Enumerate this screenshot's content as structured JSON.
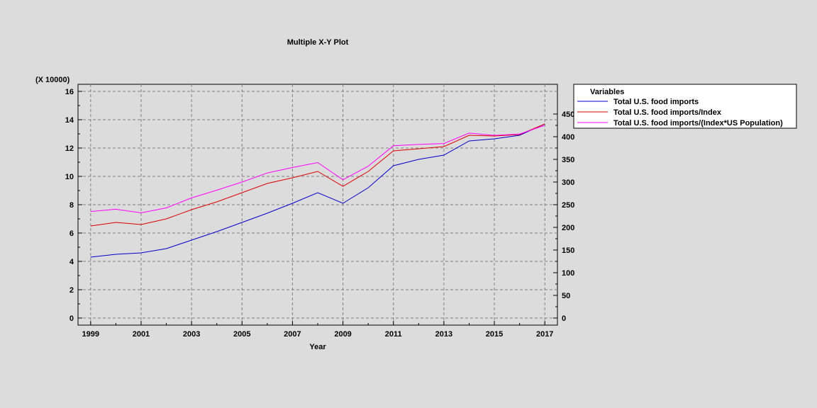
{
  "chart_data": {
    "type": "line",
    "title": "Multiple X-Y Plot",
    "xlabel": "Year",
    "left_axis_multiplier": "(X 10000)",
    "xlim": [
      1998.5,
      2017.5
    ],
    "ylim_left": [
      -0.5,
      16.5
    ],
    "ylim_right": [
      -15.625,
      515.625
    ],
    "x_ticks": [
      "1999",
      "2001",
      "2003",
      "2005",
      "2007",
      "2009",
      "2011",
      "2013",
      "2015",
      "2017"
    ],
    "y_left_ticks": [
      "0",
      "2",
      "4",
      "6",
      "8",
      "10",
      "12",
      "14",
      "16"
    ],
    "y_right_ticks": [
      "0",
      "50",
      "100",
      "150",
      "200",
      "250",
      "300",
      "350",
      "400",
      "450"
    ],
    "legend_title": "Variables",
    "legend_position": "right",
    "grid": true,
    "x": [
      1999,
      2000,
      2001,
      2002,
      2003,
      2004,
      2005,
      2006,
      2007,
      2008,
      2009,
      2010,
      2011,
      2012,
      2013,
      2014,
      2015,
      2016,
      2017
    ],
    "series": [
      {
        "name": "Total U.S. food imports",
        "color": "#0000cc",
        "axis": "left",
        "values": [
          4.3,
          4.5,
          4.6,
          4.9,
          5.5,
          6.1,
          6.75,
          7.4,
          8.1,
          8.85,
          8.1,
          9.2,
          10.75,
          11.2,
          11.5,
          12.5,
          12.65,
          12.9,
          13.7
        ]
      },
      {
        "name": "Total U.S. food imports/Index",
        "color": "#dd0000",
        "axis": "left",
        "values": [
          6.5,
          6.75,
          6.6,
          7.0,
          7.65,
          8.2,
          8.85,
          9.5,
          9.9,
          10.35,
          9.3,
          10.35,
          11.8,
          11.95,
          12.1,
          12.9,
          12.85,
          12.95,
          13.7
        ]
      },
      {
        "name": "Total U.S. food imports/(Index*US Population)",
        "color": "#ff00ff",
        "axis": "right",
        "values": [
          235,
          240,
          232,
          243,
          265,
          282,
          300,
          320,
          332,
          343,
          305,
          335,
          380,
          383,
          385,
          408,
          403,
          406,
          425
        ]
      }
    ]
  }
}
